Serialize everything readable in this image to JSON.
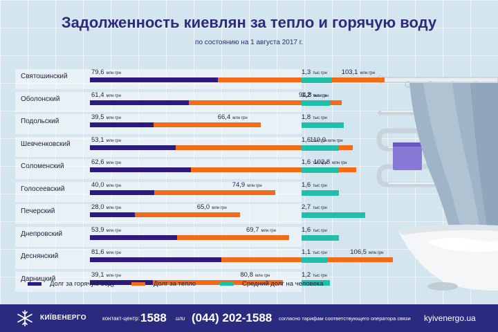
{
  "title": "Задолженность киевлян за тепло и горячую воду",
  "subtitle": "по состоянию на 1 августа 2017 г.",
  "colors": {
    "hot_water": "#2d1a80",
    "heating": "#f36a17",
    "per_person": "#1fbfa9",
    "footer_bg": "#2a2b7e"
  },
  "chart_data": {
    "type": "bar",
    "orientation": "horizontal",
    "stacked": "overlapping",
    "categories": [
      "Святошинский",
      "Оболонский",
      "Подольский",
      "Шевченковский",
      "Соломенский",
      "Голосеевский",
      "Печерский",
      "Днепровский",
      "Деснянский",
      "Дарницкий"
    ],
    "series": [
      {
        "name": "Долг за горячую воду",
        "values": [
          79.6,
          61.4,
          39.5,
          53.1,
          62.6,
          40.0,
          28.0,
          53.9,
          81.6,
          39.1
        ],
        "labels": [
          "79,6",
          "61,4",
          "39,5",
          "53,1",
          "62,6",
          "40,0",
          "28,0",
          "53,9",
          "81,6",
          "39,1"
        ],
        "unit": "млн грн"
      },
      {
        "name": "Долг за тепло",
        "values": [
          103.1,
          94.8,
          66.4,
          110.0,
          102.8,
          74.9,
          65.0,
          69.7,
          106.5,
          80.8
        ],
        "labels": [
          "103,1",
          "94,8",
          "66,4",
          "110,0",
          "102,8",
          "74,9",
          "65,0",
          "69,7",
          "106,5",
          "80,8"
        ],
        "unit": "млн грн"
      },
      {
        "name": "Средний долг на человека",
        "values": [
          1.3,
          1.2,
          1.8,
          1.6,
          1.6,
          1.6,
          2.7,
          1.6,
          1.1,
          1.2
        ],
        "labels": [
          "1,3",
          "1,2",
          "1,8",
          "1,6",
          "1,6",
          "1,6",
          "2,7",
          "1,6",
          "1,1",
          "1,2"
        ],
        "unit": "тыс грн"
      }
    ],
    "legend_position": "bottom"
  },
  "footer": {
    "logo_text": "КИЇВЕНЕРГО",
    "contact_label": "контакт-центр:",
    "phone_short": "1588",
    "or_label": "или",
    "phone_long": "(044) 202-1588",
    "tariff_note": "согласно тарифам соответствующего оператора связи",
    "website": "kyivenergo.ua",
    "logo_icon": "snowflake-icon"
  }
}
